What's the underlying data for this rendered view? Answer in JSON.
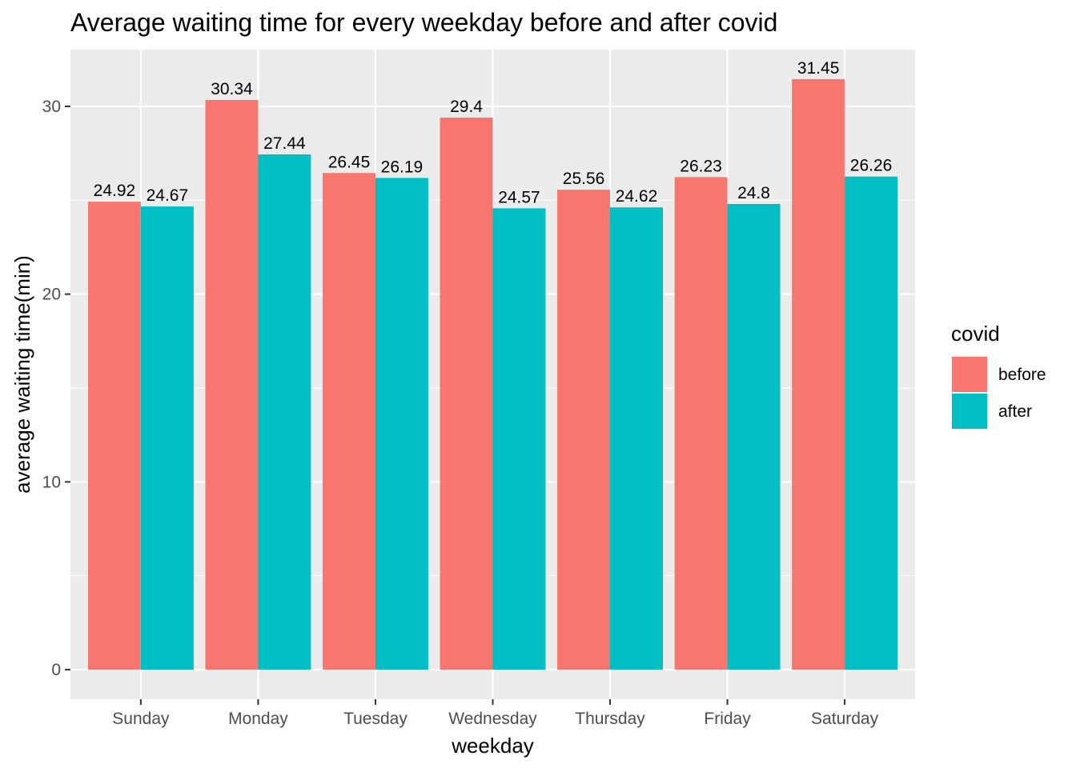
{
  "chart_data": {
    "type": "bar",
    "title": "Average waiting time for every weekday before and after covid",
    "xlabel": "weekday",
    "ylabel": "average waiting time(min)",
    "categories": [
      "Sunday",
      "Monday",
      "Tuesday",
      "Wednesday",
      "Thursday",
      "Friday",
      "Saturday"
    ],
    "series": [
      {
        "name": "before",
        "color": "#F8766D",
        "values": [
          24.92,
          30.34,
          26.45,
          29.4,
          25.56,
          26.23,
          31.45
        ],
        "labels": [
          "24.92",
          "30.34",
          "26.45",
          "29.4",
          "25.56",
          "26.23",
          "31.45"
        ]
      },
      {
        "name": "after",
        "color": "#00BFC4",
        "values": [
          24.67,
          27.44,
          26.19,
          24.57,
          24.62,
          24.8,
          26.26
        ],
        "labels": [
          "24.67",
          "27.44",
          "26.19",
          "24.57",
          "24.62",
          "24.8",
          "26.26"
        ]
      }
    ],
    "ylim": [
      -1.5725,
      33.0225
    ],
    "yticks": [
      0,
      10,
      20,
      30
    ],
    "ytick_labels": [
      "0",
      "10",
      "20",
      "30"
    ],
    "grid": true,
    "legend": {
      "title": "covid",
      "placement": "right"
    },
    "panel_background": "#EBEBEB"
  }
}
